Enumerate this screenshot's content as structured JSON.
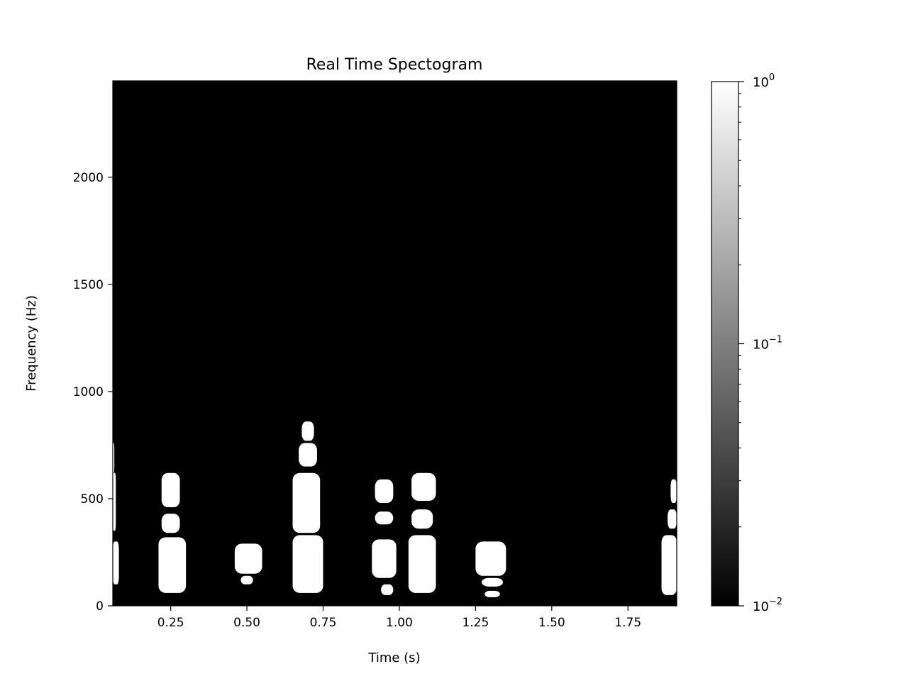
{
  "chart_data": {
    "type": "heatmap",
    "title": "Real Time Spectogram",
    "xlabel": "Time (s)",
    "ylabel": "Frequency (Hz)",
    "xlim": [
      0.06,
      1.91
    ],
    "ylim": [
      0,
      2450
    ],
    "x_ticks": [
      {
        "value": 0.25,
        "label": "0.25"
      },
      {
        "value": 0.5,
        "label": "0.50"
      },
      {
        "value": 0.75,
        "label": "0.75"
      },
      {
        "value": 1.0,
        "label": "1.00"
      },
      {
        "value": 1.25,
        "label": "1.25"
      },
      {
        "value": 1.5,
        "label": "1.50"
      },
      {
        "value": 1.75,
        "label": "1.75"
      }
    ],
    "y_ticks": [
      {
        "value": 0,
        "label": "0"
      },
      {
        "value": 500,
        "label": "500"
      },
      {
        "value": 1000,
        "label": "1000"
      },
      {
        "value": 1500,
        "label": "1500"
      },
      {
        "value": 2000,
        "label": "2000"
      }
    ],
    "background_level": 0.01,
    "grid": false,
    "colormap": {
      "low": "#000000",
      "high": "#ffffff",
      "scale": "log"
    },
    "colorbar": {
      "min": 0.01,
      "max": 1,
      "ticks": [
        {
          "value": 1,
          "base": "10",
          "exp": "0"
        },
        {
          "value": 0.1,
          "base": "10",
          "exp": "−1"
        },
        {
          "value": 0.01,
          "base": "10",
          "exp": "−2"
        }
      ]
    },
    "bright_regions": [
      {
        "t0": 0.06,
        "t1": 0.08,
        "f0": 100,
        "f1": 300
      },
      {
        "t0": 0.06,
        "t1": 0.07,
        "f0": 350,
        "f1": 620
      },
      {
        "t0": 0.06,
        "t1": 0.065,
        "f0": 620,
        "f1": 760
      },
      {
        "t0": 0.21,
        "t1": 0.3,
        "f0": 60,
        "f1": 320
      },
      {
        "t0": 0.22,
        "t1": 0.28,
        "f0": 340,
        "f1": 430
      },
      {
        "t0": 0.22,
        "t1": 0.28,
        "f0": 460,
        "f1": 620
      },
      {
        "t0": 0.46,
        "t1": 0.55,
        "f0": 150,
        "f1": 290
      },
      {
        "t0": 0.48,
        "t1": 0.52,
        "f0": 100,
        "f1": 140
      },
      {
        "t0": 0.65,
        "t1": 0.75,
        "f0": 60,
        "f1": 330
      },
      {
        "t0": 0.65,
        "t1": 0.74,
        "f0": 340,
        "f1": 620
      },
      {
        "t0": 0.67,
        "t1": 0.73,
        "f0": 650,
        "f1": 760
      },
      {
        "t0": 0.68,
        "t1": 0.72,
        "f0": 770,
        "f1": 860
      },
      {
        "t0": 0.91,
        "t1": 0.99,
        "f0": 130,
        "f1": 310
      },
      {
        "t0": 0.94,
        "t1": 0.98,
        "f0": 50,
        "f1": 100
      },
      {
        "t0": 0.92,
        "t1": 0.98,
        "f0": 380,
        "f1": 440
      },
      {
        "t0": 0.92,
        "t1": 0.98,
        "f0": 480,
        "f1": 590
      },
      {
        "t0": 1.03,
        "t1": 1.12,
        "f0": 60,
        "f1": 330
      },
      {
        "t0": 1.04,
        "t1": 1.11,
        "f0": 360,
        "f1": 450
      },
      {
        "t0": 1.04,
        "t1": 1.12,
        "f0": 490,
        "f1": 620
      },
      {
        "t0": 1.25,
        "t1": 1.35,
        "f0": 140,
        "f1": 300
      },
      {
        "t0": 1.27,
        "t1": 1.34,
        "f0": 90,
        "f1": 130
      },
      {
        "t0": 1.28,
        "t1": 1.33,
        "f0": 40,
        "f1": 70
      },
      {
        "t0": 1.86,
        "t1": 1.91,
        "f0": 50,
        "f1": 330
      },
      {
        "t0": 1.88,
        "t1": 1.91,
        "f0": 360,
        "f1": 450
      },
      {
        "t0": 1.89,
        "t1": 1.91,
        "f0": 480,
        "f1": 590
      }
    ]
  }
}
